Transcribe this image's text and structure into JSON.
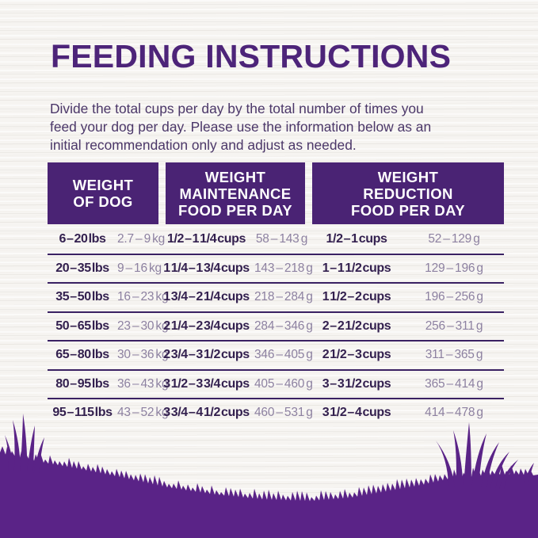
{
  "title": "FEEDING INSTRUCTIONS",
  "intro": {
    "text": "Divide the total cups per day by the total number of times you feed your dog per day. Please use the information below as an initial recommendation only and adjust as needed.",
    "lines": [
      "Divide the total cups per day by the total number of times you",
      "feed your dog per day. Please use the information below as an",
      "initial recommendation only and adjust as needed."
    ]
  },
  "table": {
    "headers": [
      {
        "label": "WEIGHT\nOF DOG"
      },
      {
        "label": "WEIGHT\nMAINTENANCE\nFOOD PER DAY"
      },
      {
        "label": "WEIGHT\nREDUCTION\nFOOD PER DAY"
      }
    ],
    "columns": [
      "weight_lbs",
      "weight_kg",
      "maintenance_cups",
      "maintenance_g",
      "reduction_cups",
      "reduction_g"
    ],
    "rows": [
      {
        "weight_lbs": "6 – 20 lbs",
        "weight_kg": "2.7 – 9 kg",
        "maintenance_cups": "1/2 – 1 1/4 cups",
        "maintenance_g": "58 – 143 g",
        "reduction_cups": "1/2 – 1 cups",
        "reduction_g": "52 – 129 g"
      },
      {
        "weight_lbs": "20 – 35 lbs",
        "weight_kg": "9 – 16 kg",
        "maintenance_cups": "1 1/4 – 1 3/4 cups",
        "maintenance_g": "143 – 218 g",
        "reduction_cups": "1 – 1 1/2 cups",
        "reduction_g": "129 – 196 g"
      },
      {
        "weight_lbs": "35 – 50 lbs",
        "weight_kg": "16 – 23 kg",
        "maintenance_cups": "1 3/4 – 2 1/4 cups",
        "maintenance_g": "218 – 284 g",
        "reduction_cups": "1 1/2 – 2 cups",
        "reduction_g": "196 – 256 g"
      },
      {
        "weight_lbs": "50 – 65 lbs",
        "weight_kg": "23 – 30 kg",
        "maintenance_cups": "2 1/4 – 2 3/4 cups",
        "maintenance_g": "284 – 346 g",
        "reduction_cups": "2 – 2 1/2 cups",
        "reduction_g": "256 – 311 g"
      },
      {
        "weight_lbs": "65 – 80 lbs",
        "weight_kg": "30 – 36 kg",
        "maintenance_cups": "2 3/4 – 3 1/2 cups",
        "maintenance_g": "346 – 405 g",
        "reduction_cups": "2 1/2 – 3 cups",
        "reduction_g": "311 – 365 g"
      },
      {
        "weight_lbs": "80 – 95 lbs",
        "weight_kg": "36 – 43 kg",
        "maintenance_cups": "3 1/2 – 3 3/4 cups",
        "maintenance_g": "405 – 460 g",
        "reduction_cups": "3 – 3 1/2 cups",
        "reduction_g": "365 – 414 g"
      },
      {
        "weight_lbs": "95 – 115 lbs",
        "weight_kg": "43 – 52 kg",
        "maintenance_cups": "3 3/4 – 4 1/2 cups",
        "maintenance_g": "460 – 531 g",
        "reduction_cups": "3 1/2 – 4 cups",
        "reduction_g": "414 – 478 g"
      }
    ]
  },
  "colors": {
    "brand_purple": "#4D2479",
    "header_background": "#4A2374",
    "grass_purple": "#5A2387",
    "row_text_dark": "#33204F",
    "row_text_light": "#8D81A1",
    "divider": "#3A2163",
    "paper_background": "#F6F4F1"
  }
}
